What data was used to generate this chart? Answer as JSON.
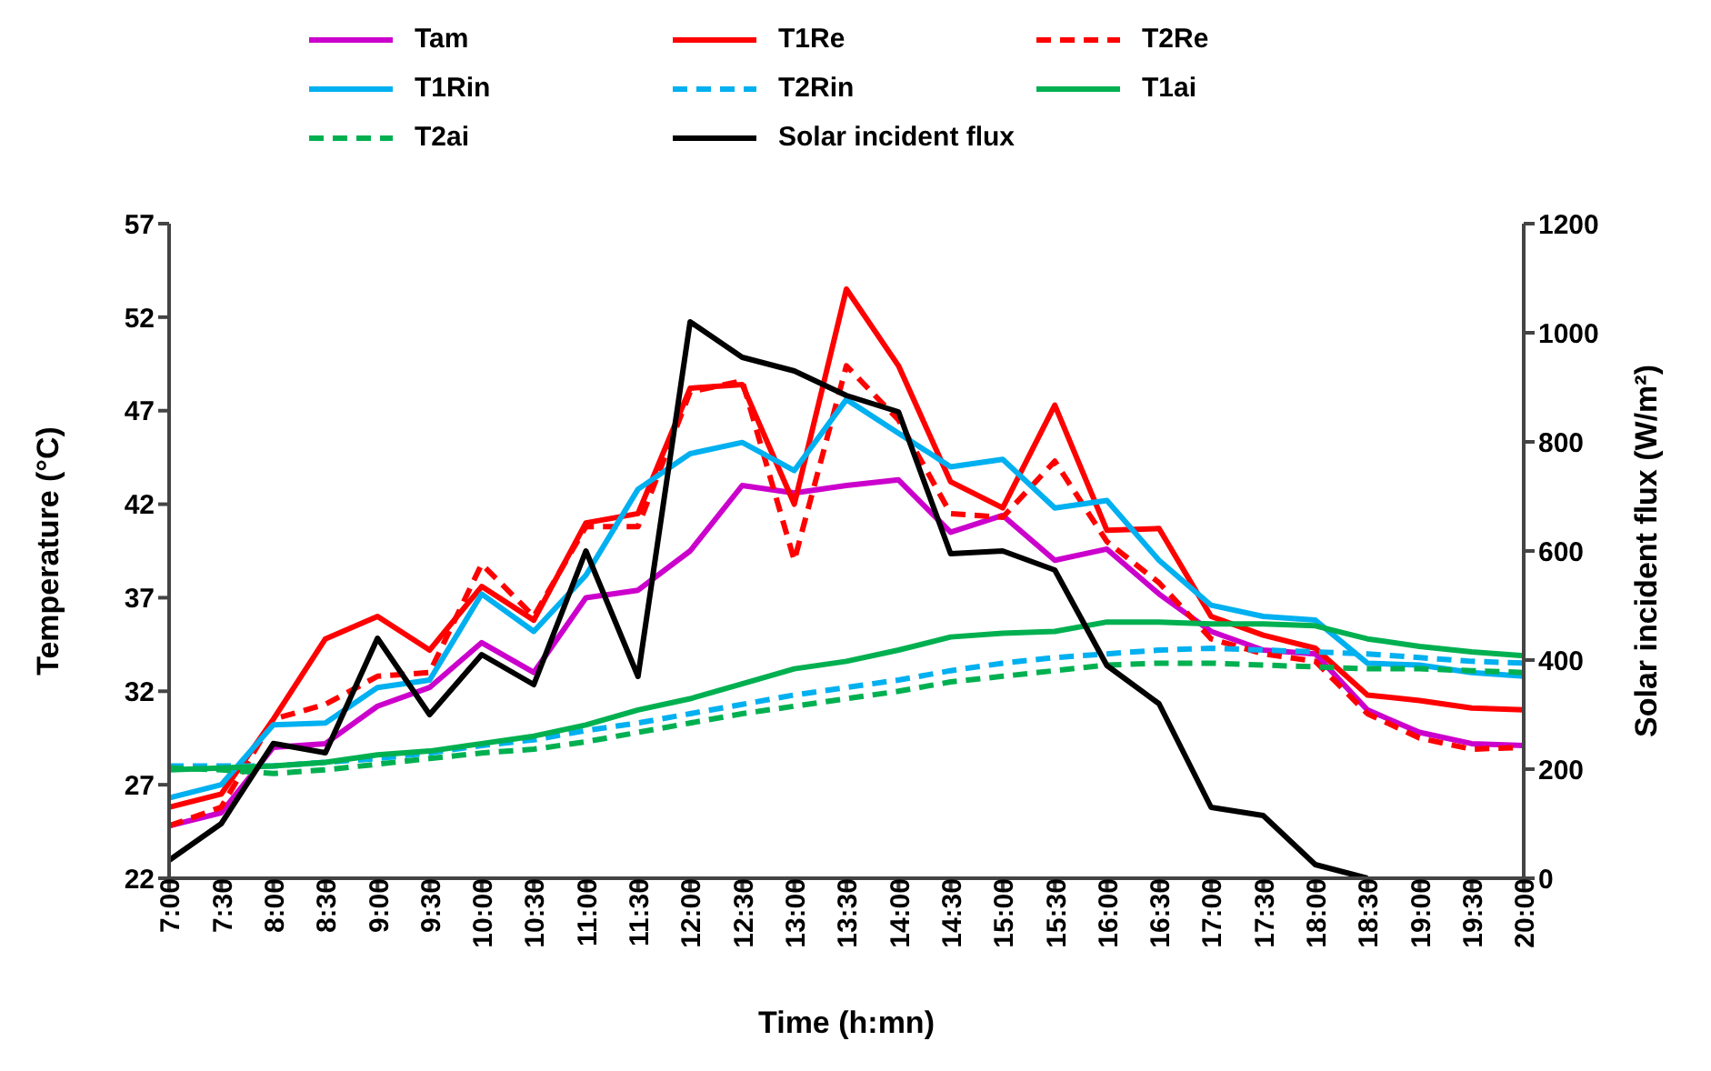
{
  "chart_data": {
    "type": "line",
    "xlabel": "Time (h:mn)",
    "ylabel": "Temperature (°C)",
    "y2label": "Solar incident flux (W/m²)",
    "categories": [
      "7:00",
      "7:30",
      "8:00",
      "8:30",
      "9:00",
      "9:30",
      "10:00",
      "10:30",
      "11:00",
      "11:30",
      "12:00",
      "12:30",
      "13:00",
      "13:30",
      "14:00",
      "14:30",
      "15:00",
      "15:30",
      "16:00",
      "16:30",
      "17:00",
      "17:30",
      "18:00",
      "18:30",
      "19:00",
      "19:30",
      "20:00"
    ],
    "ylim": [
      22,
      57
    ],
    "yticks": [
      22,
      27,
      32,
      37,
      42,
      47,
      52,
      57
    ],
    "y2lim": [
      0,
      1200
    ],
    "y2ticks": [
      0,
      200,
      400,
      600,
      800,
      1000,
      1200
    ],
    "grid": false,
    "legend": "top",
    "marker": "none",
    "series": [
      {
        "name": "Tam",
        "color": "#cc00cc",
        "values": [
          24.8,
          25.5,
          29.0,
          29.2,
          31.2,
          32.2,
          34.6,
          33.0,
          37.0,
          37.4,
          39.5,
          43.0,
          42.6,
          43.0,
          43.3,
          40.5,
          41.4,
          39.0,
          39.6,
          37.2,
          35.2,
          34.2,
          34.0,
          31.0,
          29.8,
          29.2,
          29.1
        ]
      },
      {
        "name": "T1Re",
        "color": "#ff0000",
        "values": [
          25.8,
          26.5,
          30.5,
          34.8,
          36.0,
          34.2,
          37.6,
          35.8,
          41.0,
          41.5,
          48.2,
          48.4,
          42.0,
          53.5,
          49.4,
          43.2,
          41.8,
          47.3,
          40.6,
          40.7,
          36.0,
          35.0,
          34.3,
          31.8,
          31.5,
          31.1,
          31.0
        ]
      },
      {
        "name": "T2Re",
        "color": "#ff0000",
        "line_style": "dashed",
        "values": [
          24.8,
          25.8,
          30.5,
          31.3,
          32.8,
          33.0,
          38.8,
          36.0,
          40.8,
          40.8,
          48.0,
          48.6,
          39.0,
          49.4,
          46.5,
          41.5,
          41.3,
          44.3,
          40.0,
          37.8,
          34.8,
          34.0,
          33.6,
          30.8,
          29.5,
          28.9,
          29.0
        ]
      },
      {
        "name": "T1Rin",
        "color": "#00b0f0",
        "values": [
          26.3,
          27.0,
          30.2,
          30.3,
          32.2,
          32.6,
          37.2,
          35.2,
          38.2,
          42.8,
          44.7,
          45.3,
          43.8,
          47.6,
          45.8,
          44.0,
          44.4,
          41.8,
          42.2,
          39.0,
          36.6,
          36.0,
          35.8,
          33.5,
          33.4,
          33.0,
          32.8
        ]
      },
      {
        "name": "T2Rin",
        "color": "#00b0f0",
        "line_style": "dashed",
        "values": [
          28.0,
          28.0,
          28.0,
          28.2,
          28.4,
          28.7,
          29.1,
          29.4,
          29.9,
          30.3,
          30.8,
          31.3,
          31.8,
          32.2,
          32.6,
          33.1,
          33.5,
          33.8,
          34.0,
          34.2,
          34.3,
          34.2,
          34.1,
          34.0,
          33.8,
          33.6,
          33.5
        ]
      },
      {
        "name": "T1ai",
        "color": "#00b050",
        "values": [
          27.8,
          27.9,
          28.0,
          28.2,
          28.6,
          28.8,
          29.2,
          29.6,
          30.2,
          31.0,
          31.6,
          32.4,
          33.2,
          33.6,
          34.2,
          34.9,
          35.1,
          35.2,
          35.7,
          35.7,
          35.6,
          35.6,
          35.5,
          34.8,
          34.4,
          34.1,
          33.9
        ]
      },
      {
        "name": "T2ai",
        "color": "#00b050",
        "line_style": "dashed",
        "values": [
          27.9,
          27.8,
          27.6,
          27.8,
          28.1,
          28.4,
          28.7,
          28.9,
          29.3,
          29.8,
          30.3,
          30.8,
          31.2,
          31.6,
          32.0,
          32.5,
          32.8,
          33.1,
          33.4,
          33.5,
          33.5,
          33.4,
          33.3,
          33.2,
          33.2,
          33.1,
          33.0
        ]
      },
      {
        "name": "Solar incident flux",
        "color": "#000000",
        "axis": "y2",
        "values": [
          33,
          100,
          247,
          230,
          440,
          300,
          410,
          355,
          600,
          370,
          1020,
          955,
          930,
          885,
          855,
          595,
          600,
          565,
          390,
          320,
          130,
          115,
          25,
          0,
          null,
          null,
          null
        ]
      }
    ]
  }
}
